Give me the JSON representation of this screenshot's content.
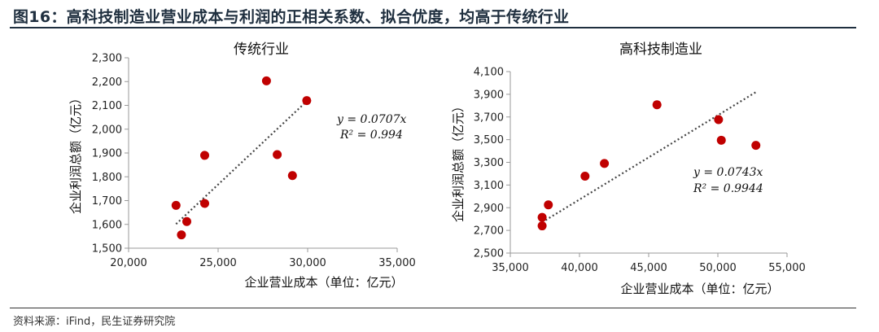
{
  "figure_title": "图16：高科技制造业营业成本与利润的正相关系数、拟合优度，均高于传统行业",
  "source_note": "资料来源：iFind，民生证券研究院",
  "colors": {
    "point": "#c00000",
    "trend": "#444444",
    "axis": "#999999",
    "header": "#1f2f3f"
  },
  "chart_data": [
    {
      "type": "scatter",
      "title": "传统行业",
      "xlabel": "企业营业成本（单位：亿元）",
      "ylabel": "企业利润总额（亿元）",
      "xlim": [
        20000,
        35000
      ],
      "ylim": [
        1500,
        2300
      ],
      "x_ticks": [
        20000,
        25000,
        30000,
        35000
      ],
      "y_ticks": [
        1500,
        1600,
        1700,
        1800,
        1900,
        2000,
        2100,
        2200,
        2300
      ],
      "x_tick_labels": [
        "20,000",
        "25,000",
        "30,000",
        "35,000"
      ],
      "y_tick_labels": [
        "1,500",
        "1,600",
        "1,700",
        "1,800",
        "1,900",
        "2,000",
        "2,100",
        "2,200",
        "2,300"
      ],
      "points": [
        {
          "x": 22650,
          "y": 1680
        },
        {
          "x": 22950,
          "y": 1556
        },
        {
          "x": 23250,
          "y": 1612
        },
        {
          "x": 24250,
          "y": 1890
        },
        {
          "x": 24250,
          "y": 1688
        },
        {
          "x": 27700,
          "y": 2203
        },
        {
          "x": 28300,
          "y": 1893
        },
        {
          "x": 29150,
          "y": 1805
        },
        {
          "x": 29950,
          "y": 2120
        }
      ],
      "trendline": {
        "x_start": 22650,
        "x_end": 29950,
        "slope": 0.0707
      },
      "equation": "y = 0.0707x",
      "r_squared": "R² = 0.994",
      "legend_position": "top-right"
    },
    {
      "type": "scatter",
      "title": "高科技制造业",
      "xlabel": "企业营业成本（单位：亿元）",
      "ylabel": "企业利润总额（亿元）",
      "xlim": [
        35000,
        55000
      ],
      "ylim": [
        2500,
        4100
      ],
      "x_ticks": [
        35000,
        40000,
        45000,
        50000,
        55000
      ],
      "y_ticks": [
        2500,
        2700,
        2900,
        3100,
        3300,
        3500,
        3700,
        3900,
        4100
      ],
      "x_tick_labels": [
        "35,000",
        "40,000",
        "45,000",
        "50,000",
        "55,000"
      ],
      "y_tick_labels": [
        "2,500",
        "2,700",
        "2,900",
        "3,100",
        "3,300",
        "3,500",
        "3,700",
        "3,900",
        "4,100"
      ],
      "points": [
        {
          "x": 37300,
          "y": 2740
        },
        {
          "x": 37300,
          "y": 2815
        },
        {
          "x": 37750,
          "y": 2925
        },
        {
          "x": 40400,
          "y": 3178
        },
        {
          "x": 41800,
          "y": 3290
        },
        {
          "x": 45600,
          "y": 3808
        },
        {
          "x": 50050,
          "y": 3677
        },
        {
          "x": 50250,
          "y": 3495
        },
        {
          "x": 52750,
          "y": 3450
        }
      ],
      "trendline": {
        "x_start": 37300,
        "x_end": 52750,
        "slope": 0.0743
      },
      "equation": "y = 0.0743x",
      "r_squared": "R² = 0.9944",
      "legend_position": "center-right"
    }
  ]
}
